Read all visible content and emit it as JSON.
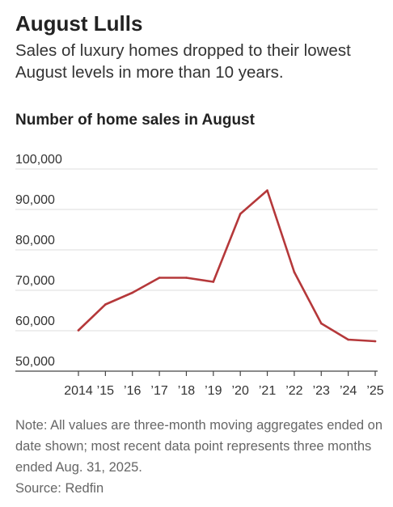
{
  "header": {
    "title": "August Lulls",
    "subtitle": "Sales of luxury homes dropped to their lowest August levels in more than 10 years.",
    "chart_heading": "Number of home sales in August"
  },
  "footer": {
    "note": "Note: All values are three-month moving aggregates ended on date shown; most recent data point represents three months ended Aug. 31, 2025.",
    "source": "Source: Redfin"
  },
  "colors": {
    "line": "#b5383a",
    "grid": "#dddddd",
    "axis": "#444444",
    "tick_label": "#333333"
  },
  "chart_data": {
    "type": "line",
    "title": "Number of home sales in August",
    "xlabel": "",
    "ylabel": "",
    "x": [
      2014,
      2015,
      2016,
      2017,
      2018,
      2019,
      2020,
      2021,
      2022,
      2023,
      2024,
      2025
    ],
    "x_tick_labels": [
      "2014",
      "’15",
      "’16",
      "’17",
      "’18",
      "’19",
      "’20",
      "’21",
      "’22",
      "’23",
      "’24",
      "’25"
    ],
    "series": [
      {
        "values": [
          60100,
          66500,
          69400,
          73100,
          73100,
          72100,
          88900,
          94700,
          74500,
          61800,
          57800,
          57400
        ]
      }
    ],
    "y_ticks": [
      50000,
      60000,
      70000,
      80000,
      90000,
      100000
    ],
    "y_tick_labels": [
      "50,000",
      "60,000",
      "70,000",
      "80,000",
      "90,000",
      "100,000"
    ],
    "ylim": [
      50000,
      100000
    ],
    "grid": true
  }
}
